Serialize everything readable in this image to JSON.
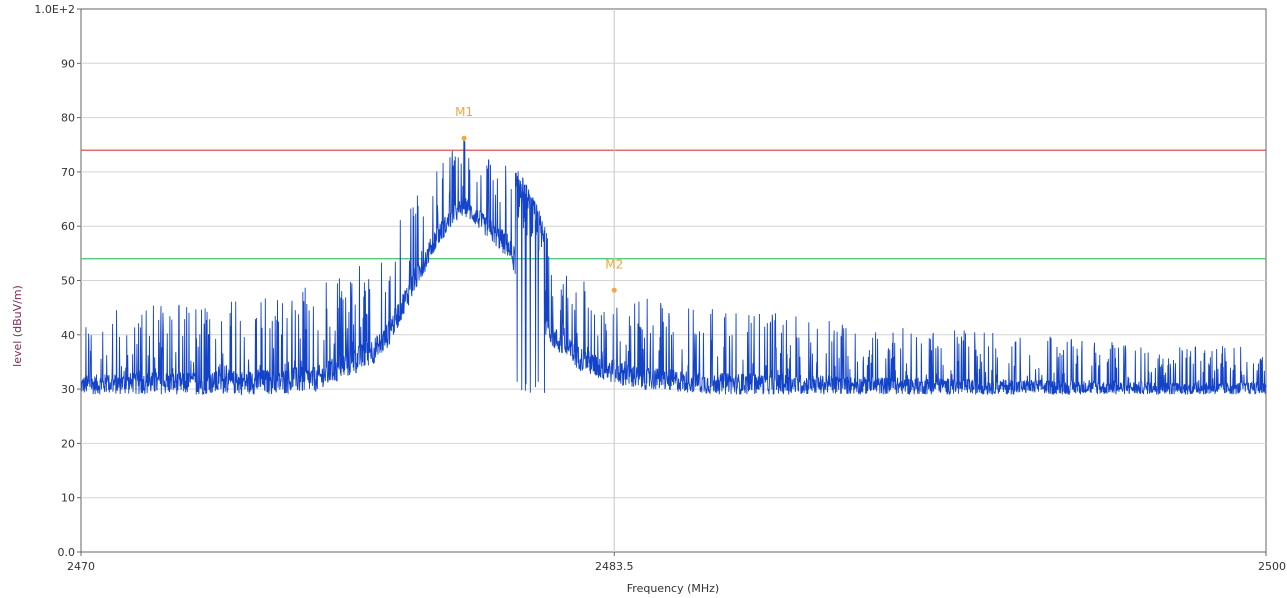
{
  "chart_data": {
    "type": "line",
    "title": "",
    "xlabel": "Frequency (MHz)",
    "ylabel": "level (dBuV/m)",
    "xlim": [
      2470,
      2500
    ],
    "ylim": [
      0,
      100
    ],
    "x_ticks": [
      {
        "value": 2470,
        "label": "2470"
      },
      {
        "value": 2483.5,
        "label": "2483.5"
      },
      {
        "value": 2500,
        "label": "2500"
      }
    ],
    "y_ticks": [
      {
        "value": 0,
        "label": "0.0"
      },
      {
        "value": 10,
        "label": "10"
      },
      {
        "value": 20,
        "label": "20"
      },
      {
        "value": 30,
        "label": "30"
      },
      {
        "value": 40,
        "label": "40"
      },
      {
        "value": 50,
        "label": "50"
      },
      {
        "value": 60,
        "label": "60"
      },
      {
        "value": 70,
        "label": "70"
      },
      {
        "value": 80,
        "label": "80"
      },
      {
        "value": 90,
        "label": "90"
      },
      {
        "value": 100,
        "label": "1.0E+2"
      }
    ],
    "grid": true,
    "limit_lines": [
      {
        "value": 74,
        "color": "#e23a3a"
      },
      {
        "value": 54,
        "color": "#3cc46a"
      }
    ],
    "markers": [
      {
        "label": "M1",
        "x": 2479.7,
        "y": 76.2
      },
      {
        "label": "M2",
        "x": 2483.5,
        "y": 48.2
      }
    ],
    "cursor_x": 2483.5,
    "series": [
      {
        "color": "#1343c8",
        "envelope": {
          "x": [
            2470,
            2471,
            2472,
            2473,
            2474,
            2475,
            2476,
            2477,
            2477.5,
            2477.8,
            2478.2,
            2478.6,
            2479,
            2479.4,
            2479.7,
            2480,
            2480.4,
            2480.8,
            2481.2,
            2481.6,
            2482,
            2482.5,
            2483,
            2483.5,
            2484,
            2485,
            2486,
            2488,
            2490,
            2492,
            2494,
            2496,
            2498,
            2500
          ],
          "peak": [
            43,
            45,
            46,
            46,
            47,
            48,
            49,
            53,
            55,
            57,
            63,
            67,
            72,
            74,
            76.2,
            74,
            73,
            73,
            69,
            63,
            55,
            52,
            50,
            49,
            47,
            46,
            45,
            44,
            42,
            41,
            40,
            39,
            38,
            38
          ],
          "floor": [
            29,
            29,
            29,
            29,
            29,
            29,
            29.5,
            33,
            35,
            38,
            44,
            50,
            56,
            60,
            62,
            60,
            57,
            54,
            48,
            42,
            37,
            34,
            32,
            31,
            30,
            29.5,
            29,
            29,
            29,
            29,
            29,
            29,
            29,
            29
          ]
        }
      }
    ]
  }
}
